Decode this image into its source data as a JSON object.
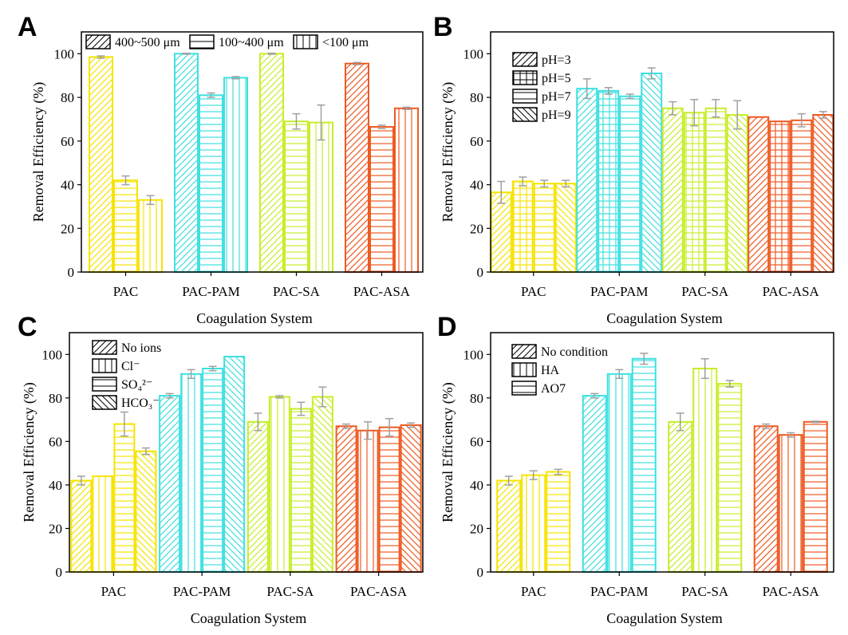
{
  "colors": {
    "PAC": "#f5e400",
    "PAC-PAM": "#3fe0e0",
    "PAC-SA": "#c6ee2a",
    "PAC-ASA": "#ee5a22",
    "error": "#a0a0a0"
  },
  "chart_data": [
    {
      "panel": "A",
      "type": "bar",
      "categories": [
        "PAC",
        "PAC-PAM",
        "PAC-SA",
        "PAC-ASA"
      ],
      "xlabel": "Coagulation System",
      "ylabel": "Removal Efficiency (%)",
      "ylim": [
        0,
        110
      ],
      "yticks": [
        0,
        20,
        40,
        60,
        80,
        100
      ],
      "legend_position": "top",
      "series": [
        {
          "name": "400~500 μm",
          "pattern": "diag",
          "values": [
            98.5,
            100,
            100,
            95.5
          ],
          "errors": [
            0.5,
            0.2,
            0.2,
            0.5
          ]
        },
        {
          "name": "100~400 μm",
          "pattern": "hlines",
          "values": [
            42,
            81,
            69,
            66.5
          ],
          "errors": [
            2,
            1,
            3.5,
            0.8
          ]
        },
        {
          "name": "<100 μm",
          "pattern": "vlines",
          "values": [
            33,
            89,
            68.5,
            75
          ],
          "errors": [
            2,
            0.5,
            8,
            0.5
          ]
        }
      ]
    },
    {
      "panel": "B",
      "type": "bar",
      "categories": [
        "PAC",
        "PAC-PAM",
        "PAC-SA",
        "PAC-ASA"
      ],
      "xlabel": "Coagulation System",
      "ylabel": "Removal Efficiency (%)",
      "ylim": [
        0,
        110
      ],
      "yticks": [
        0,
        20,
        40,
        60,
        80,
        100
      ],
      "legend_position": "top-left",
      "series": [
        {
          "name": "pH=3",
          "pattern": "diag",
          "values": [
            36.5,
            84,
            75,
            71
          ],
          "errors": [
            5,
            4.5,
            3,
            0
          ]
        },
        {
          "name": "pH=5",
          "pattern": "grid",
          "values": [
            41.5,
            83,
            73,
            69
          ],
          "errors": [
            2,
            1.5,
            6,
            0
          ]
        },
        {
          "name": "pH=7",
          "pattern": "hlines",
          "values": [
            40.5,
            80.5,
            75,
            69.5
          ],
          "errors": [
            1.5,
            1,
            4,
            3
          ]
        },
        {
          "name": "pH=9",
          "pattern": "back",
          "values": [
            40.5,
            91,
            72,
            72
          ],
          "errors": [
            1.5,
            2.5,
            6.5,
            1.5
          ]
        }
      ]
    },
    {
      "panel": "C",
      "type": "bar",
      "categories": [
        "PAC",
        "PAC-PAM",
        "PAC-SA",
        "PAC-ASA"
      ],
      "xlabel": "Coagulation System",
      "ylabel": "Removal Efficiency (%)",
      "ylim": [
        0,
        110
      ],
      "yticks": [
        0,
        20,
        40,
        60,
        80,
        100
      ],
      "legend_position": "top-left",
      "series": [
        {
          "name": "No ions",
          "pattern": "diag",
          "values": [
            42,
            81,
            69,
            67
          ],
          "errors": [
            2,
            1,
            4,
            1
          ]
        },
        {
          "name": "Cl⁻",
          "pattern": "vlines",
          "values": [
            44,
            91,
            80.5,
            65
          ],
          "errors": [
            0,
            2,
            0.5,
            4
          ]
        },
        {
          "name": "SO₄²⁻",
          "pattern": "hlines",
          "values": [
            68,
            93.5,
            75,
            66.5
          ],
          "errors": [
            5.5,
            1,
            3,
            4
          ]
        },
        {
          "name": "HCO₃⁻",
          "pattern": "back",
          "values": [
            55.5,
            99,
            80.5,
            67.5
          ],
          "errors": [
            1.5,
            0,
            4.5,
            1
          ]
        }
      ]
    },
    {
      "panel": "D",
      "type": "bar",
      "categories": [
        "PAC",
        "PAC-PAM",
        "PAC-SA",
        "PAC-ASA"
      ],
      "xlabel": "Coagulation System",
      "ylabel": "Removal Efficiency (%)",
      "ylim": [
        0,
        110
      ],
      "yticks": [
        0,
        20,
        40,
        60,
        80,
        100
      ],
      "legend_position": "top-left",
      "series": [
        {
          "name": "No condition",
          "pattern": "diag",
          "values": [
            42,
            81,
            69,
            67
          ],
          "errors": [
            2,
            1,
            4,
            1
          ]
        },
        {
          "name": "HA",
          "pattern": "vlines",
          "values": [
            44.5,
            91,
            93.5,
            63
          ],
          "errors": [
            2,
            2,
            4.5,
            1
          ]
        },
        {
          "name": "AO7",
          "pattern": "hlines",
          "values": [
            46,
            98,
            86.5,
            69
          ],
          "errors": [
            1.2,
            2.5,
            1.5,
            0.3
          ]
        }
      ]
    }
  ]
}
